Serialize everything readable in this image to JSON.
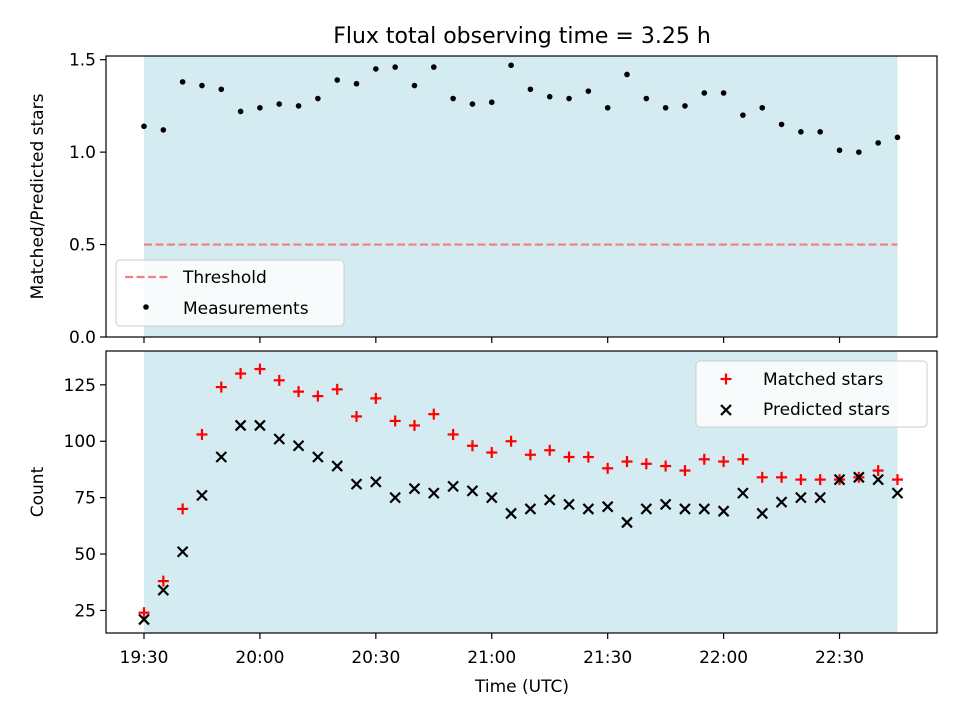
{
  "chart_data": {
    "title": "Flux total observing time = 3.25 h",
    "xlabel": "Time (UTC)",
    "x_ticks": [
      "19:30",
      "20:00",
      "20:30",
      "21:00",
      "21:30",
      "22:00",
      "22:30"
    ],
    "x": [
      "19:30",
      "19:35",
      "19:40",
      "19:45",
      "19:50",
      "19:55",
      "20:00",
      "20:05",
      "20:10",
      "20:15",
      "20:20",
      "20:25",
      "20:30",
      "20:35",
      "20:40",
      "20:45",
      "20:50",
      "20:55",
      "21:00",
      "21:05",
      "21:10",
      "21:15",
      "21:20",
      "21:25",
      "21:30",
      "21:35",
      "21:40",
      "21:45",
      "21:50",
      "21:55",
      "22:00",
      "22:05",
      "22:10",
      "22:15",
      "22:20",
      "22:25",
      "22:30",
      "22:35",
      "22:40",
      "22:45"
    ],
    "shaded_span": [
      "19:30",
      "22:45"
    ],
    "colors": {
      "span": "#d4ebf1",
      "threshold": "#f08080",
      "measurements": "#000000",
      "matched": "#ff0000",
      "predicted": "#000000"
    },
    "panels": [
      {
        "type": "scatter",
        "ylabel": "Matched/Predicted stars",
        "ylim": [
          0,
          1.52
        ],
        "yticks": [
          0.0,
          0.5,
          1.0,
          1.5
        ],
        "ytick_labels": [
          "0.0",
          "0.5",
          "1.0",
          "1.5"
        ],
        "legend_position": "lower-left",
        "threshold": {
          "name": "Threshold",
          "value": 0.5
        },
        "series": [
          {
            "name": "Measurements",
            "marker": "dot",
            "values": [
              1.14,
              1.12,
              1.38,
              1.36,
              1.34,
              1.22,
              1.24,
              1.26,
              1.25,
              1.29,
              1.39,
              1.37,
              1.45,
              1.46,
              1.36,
              1.46,
              1.29,
              1.26,
              1.27,
              1.47,
              1.34,
              1.3,
              1.29,
              1.33,
              1.24,
              1.42,
              1.29,
              1.24,
              1.25,
              1.32,
              1.32,
              1.2,
              1.24,
              1.15,
              1.11,
              1.11,
              1.01,
              1.0,
              1.05,
              1.08
            ]
          }
        ]
      },
      {
        "type": "scatter",
        "ylabel": "Count",
        "ylim": [
          15,
          140
        ],
        "yticks": [
          25,
          50,
          75,
          100,
          125
        ],
        "ytick_labels": [
          "25",
          "50",
          "75",
          "100",
          "125"
        ],
        "legend_position": "upper-right",
        "series": [
          {
            "name": "Matched stars",
            "marker": "plus",
            "values": [
              24,
              38,
              70,
              103,
              124,
              130,
              132,
              127,
              122,
              120,
              123,
              111,
              119,
              109,
              107,
              112,
              103,
              98,
              95,
              100,
              94,
              96,
              93,
              93,
              88,
              91,
              90,
              89,
              87,
              92,
              91,
              92,
              84,
              84,
              83,
              83,
              83,
              84,
              87,
              83
            ]
          },
          {
            "name": "Predicted stars",
            "marker": "x",
            "values": [
              21,
              34,
              51,
              76,
              93,
              107,
              107,
              101,
              98,
              93,
              89,
              81,
              82,
              75,
              79,
              77,
              80,
              78,
              75,
              68,
              70,
              74,
              72,
              70,
              71,
              64,
              70,
              72,
              70,
              70,
              69,
              77,
              68,
              73,
              75,
              75,
              83,
              84,
              83,
              77
            ]
          }
        ]
      }
    ]
  }
}
